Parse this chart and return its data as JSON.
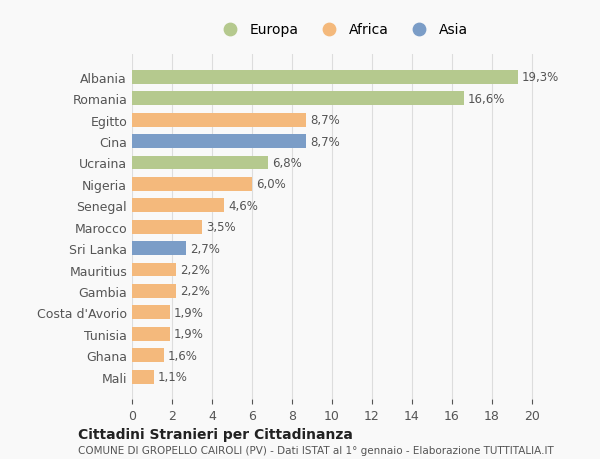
{
  "categories": [
    "Albania",
    "Romania",
    "Egitto",
    "Cina",
    "Ucraina",
    "Nigeria",
    "Senegal",
    "Marocco",
    "Sri Lanka",
    "Mauritius",
    "Gambia",
    "Costa d'Avorio",
    "Tunisia",
    "Ghana",
    "Mali"
  ],
  "values": [
    19.3,
    16.6,
    8.7,
    8.7,
    6.8,
    6.0,
    4.6,
    3.5,
    2.7,
    2.2,
    2.2,
    1.9,
    1.9,
    1.6,
    1.1
  ],
  "labels": [
    "19,3%",
    "16,6%",
    "8,7%",
    "8,7%",
    "6,8%",
    "6,0%",
    "4,6%",
    "3,5%",
    "2,7%",
    "2,2%",
    "2,2%",
    "1,9%",
    "1,9%",
    "1,6%",
    "1,1%"
  ],
  "continents": [
    "Europa",
    "Europa",
    "Africa",
    "Asia",
    "Europa",
    "Africa",
    "Africa",
    "Africa",
    "Asia",
    "Africa",
    "Africa",
    "Africa",
    "Africa",
    "Africa",
    "Africa"
  ],
  "colors": {
    "Europa": "#b5c98e",
    "Africa": "#f4b97c",
    "Asia": "#7b9dc7"
  },
  "legend_labels": [
    "Europa",
    "Africa",
    "Asia"
  ],
  "title1": "Cittadini Stranieri per Cittadinanza",
  "title2": "COMUNE DI GROPELLO CAIROLI (PV) - Dati ISTAT al 1° gennaio - Elaborazione TUTTITALIA.IT",
  "xlim": [
    0,
    21
  ],
  "xticks": [
    0,
    2,
    4,
    6,
    8,
    10,
    12,
    14,
    16,
    18,
    20
  ],
  "background_color": "#f9f9f9",
  "grid_color": "#dddddd"
}
